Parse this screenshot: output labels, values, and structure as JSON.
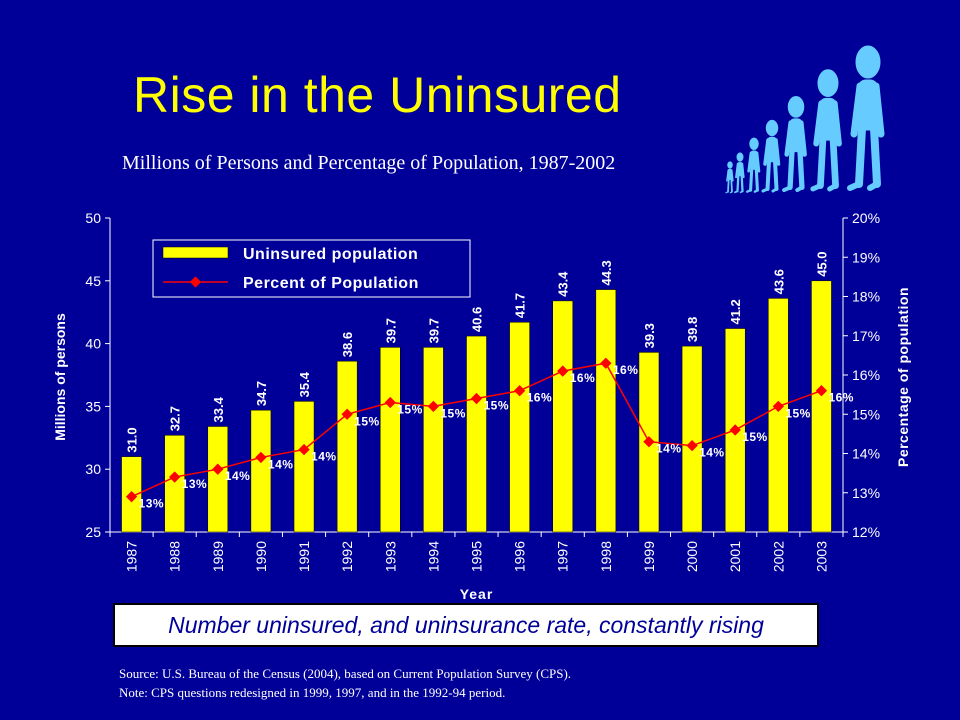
{
  "slide": {
    "title": "Rise in the Uninsured",
    "subtitle": "Millions of Persons and Percentage of Population, 1987-2002",
    "callout": "Number uninsured, and uninsurance rate, constantly rising",
    "source_line1": "Source:  U.S. Bureau of the Census (2004), based on Current Population Survey (CPS).",
    "source_line2": "Note: CPS questions redesigned in 1999, 1997, and in the 1992-94 period."
  },
  "colors": {
    "background": "#000099",
    "title": "#ffff00",
    "bar": "#ffff00",
    "line": "#ff0000",
    "figure": "#66ccff",
    "text": "#ffffff"
  },
  "decoration": {
    "figure_icon": "person-figures-icon"
  },
  "chart_data": {
    "type": "bar",
    "categories": [
      "1987",
      "1988",
      "1989",
      "1990",
      "1991",
      "1992",
      "1993",
      "1994",
      "1995",
      "1996",
      "1997",
      "1998",
      "1999",
      "2000",
      "2001",
      "2002",
      "2003"
    ],
    "series": [
      {
        "name": "Uninsured population",
        "type": "bar",
        "axis": "left",
        "values": [
          31.0,
          32.7,
          33.4,
          34.7,
          35.4,
          38.6,
          39.7,
          39.7,
          40.6,
          41.7,
          43.4,
          44.3,
          39.3,
          39.8,
          41.2,
          43.6,
          45.0
        ],
        "labels": [
          "31.0",
          "32.7",
          "33.4",
          "34.7",
          "35.4",
          "38.6",
          "39.7",
          "39.7",
          "40.6",
          "41.7",
          "43.4",
          "44.3",
          "39.3",
          "39.8",
          "41.2",
          "43.6",
          "45.0"
        ]
      },
      {
        "name": "Percent of Population",
        "type": "line",
        "axis": "right",
        "values": [
          12.9,
          13.4,
          13.6,
          13.9,
          14.1,
          15.0,
          15.3,
          15.2,
          15.4,
          15.6,
          16.1,
          16.3,
          14.3,
          14.2,
          14.6,
          15.2,
          15.6
        ],
        "labels": [
          "13%",
          "13%",
          "14%",
          "14%",
          "14%",
          "15%",
          "15%",
          "15%",
          "15%",
          "16%",
          "16%",
          "16%",
          "14%",
          "14%",
          "15%",
          "15%",
          "16%"
        ]
      }
    ],
    "xlabel": "Year",
    "ylabel": "Millions of persons",
    "y2label": "Percentage of population",
    "ylim": [
      25,
      50
    ],
    "y2lim": [
      12,
      20
    ],
    "yticks": [
      "25",
      "30",
      "35",
      "40",
      "45",
      "50"
    ],
    "y2ticks": [
      "12%",
      "13%",
      "14%",
      "15%",
      "16%",
      "17%",
      "18%",
      "19%",
      "20%"
    ],
    "grid": false,
    "legend": "top-left"
  }
}
